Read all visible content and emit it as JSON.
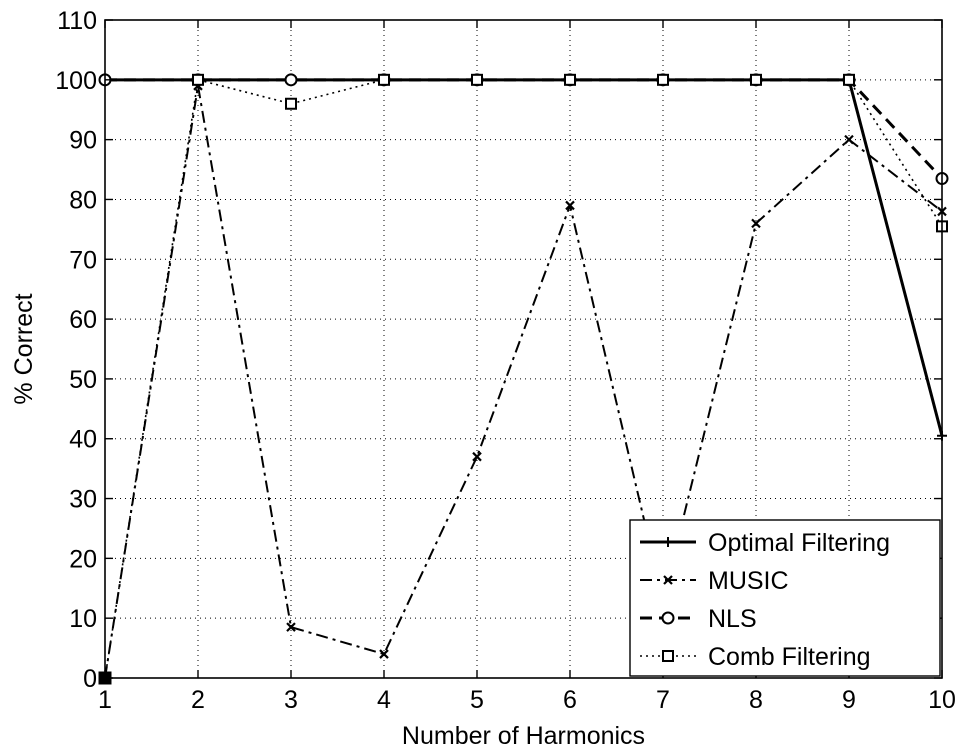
{
  "chart_data": {
    "type": "line",
    "title": "",
    "xlabel": "Number of Harmonics",
    "ylabel": "% Correct",
    "x": [
      1,
      2,
      3,
      4,
      5,
      6,
      7,
      8,
      9,
      10
    ],
    "xlim": [
      1,
      10
    ],
    "ylim": [
      0,
      110
    ],
    "xticks": [
      "1",
      "2",
      "3",
      "4",
      "5",
      "6",
      "7",
      "8",
      "9",
      "10"
    ],
    "yticks": [
      "0",
      "10",
      "20",
      "30",
      "40",
      "50",
      "60",
      "70",
      "80",
      "90",
      "100",
      "110"
    ],
    "grid": true,
    "legend_position": "bottom-right",
    "series": [
      {
        "name": "Optimal Filtering",
        "line_style": "solid",
        "marker": "plus",
        "values": [
          100,
          100,
          100,
          100,
          100,
          100,
          100,
          100,
          100,
          40.5
        ]
      },
      {
        "name": "MUSIC",
        "line_style": "dash-dot",
        "marker": "x",
        "values": [
          0,
          99,
          8.5,
          4,
          37,
          79,
          13,
          76,
          90,
          78
        ]
      },
      {
        "name": "NLS",
        "line_style": "dashed",
        "marker": "circle",
        "values": [
          100,
          100,
          100,
          100,
          100,
          100,
          100,
          100,
          100,
          83.5
        ]
      },
      {
        "name": "Comb Filtering",
        "line_style": "dotted",
        "marker": "square",
        "values": [
          0,
          100,
          96,
          100,
          100,
          100,
          100,
          100,
          100,
          75.5
        ]
      }
    ]
  }
}
